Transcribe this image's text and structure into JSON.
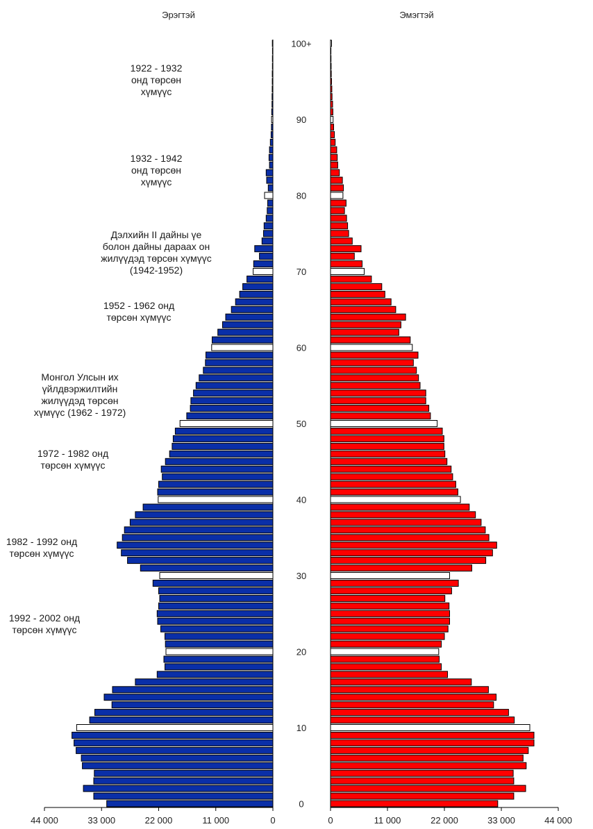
{
  "chart_data": {
    "type": "bar",
    "orientation": "horizontal-population-pyramid",
    "panels": [
      {
        "name": "Эрэгтэй",
        "side": "left",
        "color": "#0a2fa8"
      },
      {
        "name": "Эмэгтэй",
        "side": "right",
        "color": "#ff0000"
      }
    ],
    "highlight_color": "#ffffff",
    "age_ticks": [
      "0",
      "10",
      "20",
      "30",
      "40",
      "50",
      "60",
      "70",
      "80",
      "90",
      "100+"
    ],
    "x_ticks": [
      "44 000",
      "33 000",
      "22 000",
      "11 000",
      "0"
    ],
    "x_ticks_right": [
      "0",
      "11 000",
      "22 000",
      "33 000",
      "44 000"
    ],
    "xlim": [
      0,
      44000
    ],
    "ages": [
      0,
      1,
      2,
      3,
      4,
      5,
      6,
      7,
      8,
      9,
      10,
      11,
      12,
      13,
      14,
      15,
      16,
      17,
      18,
      19,
      20,
      21,
      22,
      23,
      24,
      25,
      26,
      27,
      28,
      29,
      30,
      31,
      32,
      33,
      34,
      35,
      36,
      37,
      38,
      39,
      40,
      41,
      42,
      43,
      44,
      45,
      46,
      47,
      48,
      49,
      50,
      51,
      52,
      53,
      54,
      55,
      56,
      57,
      58,
      59,
      60,
      61,
      62,
      63,
      64,
      65,
      66,
      67,
      68,
      69,
      70,
      71,
      72,
      73,
      74,
      75,
      76,
      77,
      78,
      79,
      80,
      81,
      82,
      83,
      84,
      85,
      86,
      87,
      88,
      89,
      90,
      91,
      92,
      93,
      94,
      95,
      96,
      97,
      98,
      99,
      100
    ],
    "series": [
      {
        "name": "Эрэгтэй",
        "values": [
          32000,
          34500,
          36500,
          34500,
          34400,
          36700,
          36900,
          37900,
          38300,
          38700,
          37800,
          35300,
          34300,
          31000,
          32500,
          30900,
          26500,
          22300,
          20800,
          21000,
          20600,
          20700,
          20800,
          21600,
          22200,
          22300,
          22000,
          21800,
          22000,
          23100,
          21800,
          25500,
          28000,
          29200,
          30000,
          29000,
          28600,
          27500,
          26500,
          25000,
          22100,
          22200,
          22000,
          21300,
          21500,
          20700,
          19900,
          19400,
          19200,
          18800,
          17900,
          16600,
          15900,
          15800,
          15300,
          14800,
          14200,
          13400,
          13000,
          12900,
          11800,
          11700,
          10600,
          9700,
          9100,
          8000,
          7200,
          6400,
          5800,
          5000,
          3800,
          3700,
          2600,
          3500,
          2100,
          1800,
          1700,
          1300,
          1100,
          1000,
          1600,
          900,
          1200,
          1300,
          650,
          750,
          650,
          500,
          350,
          280,
          260,
          230,
          180,
          160,
          140,
          120,
          120,
          100,
          90,
          80,
          110
        ]
      },
      {
        "name": "Эмэгтэй",
        "values": [
          32300,
          35400,
          37700,
          35400,
          35300,
          37800,
          37200,
          38200,
          39300,
          39300,
          38500,
          35500,
          34400,
          31500,
          32000,
          30500,
          27200,
          22600,
          21400,
          21000,
          20900,
          21400,
          22000,
          22700,
          23000,
          23000,
          22900,
          22100,
          23400,
          24700,
          23000,
          27300,
          30000,
          31300,
          32100,
          30600,
          29900,
          29100,
          28000,
          26800,
          25100,
          24600,
          24200,
          23600,
          23300,
          22500,
          22100,
          21900,
          21900,
          21600,
          20600,
          19300,
          19000,
          18400,
          18400,
          17300,
          17000,
          16600,
          16000,
          16900,
          15800,
          15400,
          13200,
          13600,
          14500,
          12600,
          11700,
          10500,
          9900,
          7900,
          6500,
          6100,
          4600,
          5900,
          4200,
          3500,
          3300,
          3100,
          2700,
          3000,
          2400,
          2500,
          2300,
          1700,
          1400,
          1300,
          1200,
          900,
          750,
          600,
          500,
          450,
          400,
          300,
          250,
          200,
          150,
          120,
          100,
          80,
          200
        ]
      }
    ],
    "highlighted_ages": [
      10,
      20,
      30,
      40,
      50,
      60,
      70,
      80,
      90,
      100
    ]
  },
  "annotations": [
    {
      "id": "c1922",
      "lines": [
        "1922 - 1932",
        "онд төрсөн",
        "хүмүүс"
      ]
    },
    {
      "id": "c1932",
      "lines": [
        "1932 - 1942",
        "онд төрсөн",
        "хүмүүс"
      ]
    },
    {
      "id": "c1942",
      "lines": [
        "Дэлхийн II дайны үе",
        "болон дайны дараах он",
        "жилүүдэд төрсөн хүмүүс",
        "(1942-1952)"
      ]
    },
    {
      "id": "c1952",
      "lines": [
        "1952 - 1962 онд",
        "төрсөн хүмүүс"
      ]
    },
    {
      "id": "c1962",
      "lines": [
        "Монгол Улсын их",
        "үйлдвэржилтийн",
        "жилүүдэд төрсөн",
        "хүмүүс (1962 - 1972)"
      ]
    },
    {
      "id": "c1972",
      "lines": [
        "1972 - 1982 онд",
        "төрсөн хүмүүс"
      ]
    },
    {
      "id": "c1982",
      "lines": [
        "1982 - 1992 онд",
        "төрсөн хүмүүс"
      ]
    },
    {
      "id": "c1992",
      "lines": [
        "1992 - 2002 онд",
        "төрсөн хүмүүс"
      ]
    }
  ]
}
